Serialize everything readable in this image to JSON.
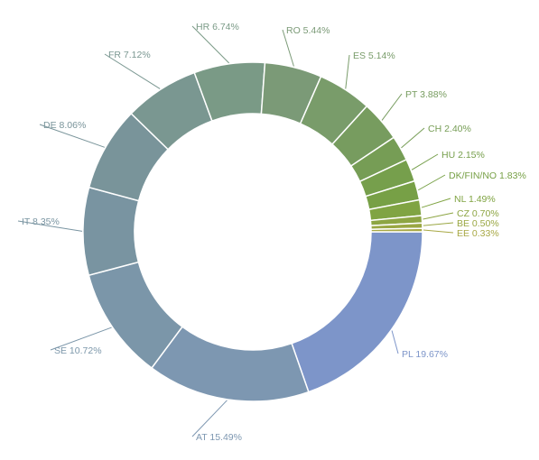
{
  "chart_data": {
    "type": "donut",
    "title": "",
    "unit": "%",
    "slices": [
      {
        "label": "PL",
        "value": 19.67,
        "text": "PL 19.67%",
        "color": "#7d95c9"
      },
      {
        "label": "AT",
        "value": 15.49,
        "text": "AT 15.49%",
        "color": "#7d97b1"
      },
      {
        "label": "SE",
        "value": 10.72,
        "text": "SE 10.72%",
        "color": "#7b96a9"
      },
      {
        "label": "IT",
        "value": 8.35,
        "text": "IT 8.35%",
        "color": "#7994a1"
      },
      {
        "label": "DE",
        "value": 8.06,
        "text": "DE 8.06%",
        "color": "#79949a"
      },
      {
        "label": "FR",
        "value": 7.12,
        "text": "FR 7.12%",
        "color": "#7a9791"
      },
      {
        "label": "HR",
        "value": 6.74,
        "text": "HR 6.74%",
        "color": "#7a9a86"
      },
      {
        "label": "RO",
        "value": 5.44,
        "text": "RO 5.44%",
        "color": "#7b9a77"
      },
      {
        "label": "ES",
        "value": 5.14,
        "text": "ES 5.14%",
        "color": "#799c6a"
      },
      {
        "label": "PT",
        "value": 3.88,
        "text": "PT 3.88%",
        "color": "#779c5f"
      },
      {
        "label": "CH",
        "value": 2.4,
        "text": "CH 2.40%",
        "color": "#769d55"
      },
      {
        "label": "HU",
        "value": 2.15,
        "text": "HU 2.15%",
        "color": "#769f4c"
      },
      {
        "label": "DK/FIN/NO",
        "value": 1.83,
        "text": "DK/FIN/NO 1.83%",
        "color": "#77a046"
      },
      {
        "label": "NL",
        "value": 1.49,
        "text": "NL 1.49%",
        "color": "#80a443"
      },
      {
        "label": "CZ",
        "value": 0.7,
        "text": "CZ 0.70%",
        "color": "#8da543"
      },
      {
        "label": "BE",
        "value": 0.5,
        "text": "BE 0.50%",
        "color": "#9aa743"
      },
      {
        "label": "EE",
        "value": 0.33,
        "text": "EE 0.33%",
        "color": "#a8a844"
      }
    ]
  }
}
